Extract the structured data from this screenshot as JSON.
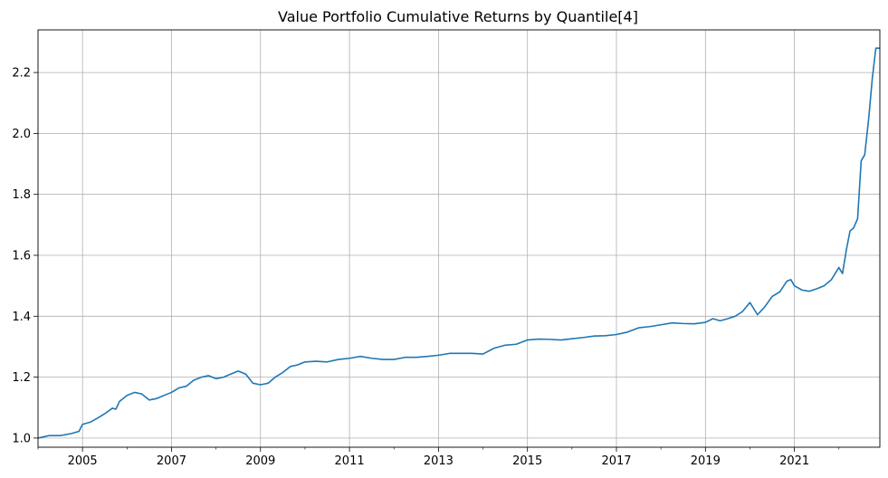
{
  "chart_data": {
    "type": "line",
    "title": "Value Portfolio Cumulative Returns by Quantile[4]",
    "xlabel": "",
    "ylabel": "",
    "grid": true,
    "xlim": [
      2004.0,
      2022.92
    ],
    "ylim": [
      0.97,
      2.34
    ],
    "x_ticks": [
      2005,
      2007,
      2009,
      2011,
      2013,
      2015,
      2017,
      2019,
      2021
    ],
    "x_tick_labels": [
      "2005",
      "2007",
      "2009",
      "2011",
      "2013",
      "2015",
      "2017",
      "2019",
      "2021"
    ],
    "y_ticks": [
      1.0,
      1.2,
      1.4,
      1.6,
      1.8,
      2.0,
      2.2
    ],
    "y_tick_labels": [
      "1.0",
      "1.2",
      "1.4",
      "1.6",
      "1.8",
      "2.0",
      "2.2"
    ],
    "series": [
      {
        "name": "Quantile 4",
        "color": "#1f77b4",
        "x": [
          2004.0,
          2004.25,
          2004.5,
          2004.75,
          2004.92,
          2005.0,
          2005.17,
          2005.33,
          2005.5,
          2005.67,
          2005.75,
          2005.83,
          2006.0,
          2006.17,
          2006.33,
          2006.5,
          2006.67,
          2006.83,
          2007.0,
          2007.17,
          2007.33,
          2007.5,
          2007.67,
          2007.83,
          2008.0,
          2008.17,
          2008.33,
          2008.5,
          2008.67,
          2008.83,
          2009.0,
          2009.17,
          2009.33,
          2009.5,
          2009.67,
          2009.83,
          2010.0,
          2010.25,
          2010.5,
          2010.75,
          2011.0,
          2011.25,
          2011.5,
          2011.75,
          2012.0,
          2012.25,
          2012.5,
          2012.75,
          2013.0,
          2013.25,
          2013.5,
          2013.75,
          2014.0,
          2014.25,
          2014.5,
          2014.75,
          2015.0,
          2015.25,
          2015.5,
          2015.75,
          2016.0,
          2016.25,
          2016.5,
          2016.75,
          2017.0,
          2017.25,
          2017.5,
          2017.75,
          2018.0,
          2018.25,
          2018.5,
          2018.75,
          2019.0,
          2019.17,
          2019.33,
          2019.5,
          2019.67,
          2019.83,
          2020.0,
          2020.17,
          2020.33,
          2020.5,
          2020.67,
          2020.83,
          2020.92,
          2021.0,
          2021.17,
          2021.33,
          2021.5,
          2021.67,
          2021.83,
          2022.0,
          2022.08,
          2022.17,
          2022.25,
          2022.33,
          2022.42,
          2022.5,
          2022.58,
          2022.67,
          2022.75,
          2022.83,
          2022.92
        ],
        "values": [
          1.0,
          1.008,
          1.008,
          1.015,
          1.022,
          1.045,
          1.052,
          1.065,
          1.08,
          1.098,
          1.095,
          1.12,
          1.14,
          1.15,
          1.145,
          1.125,
          1.13,
          1.14,
          1.15,
          1.165,
          1.17,
          1.19,
          1.2,
          1.205,
          1.195,
          1.2,
          1.21,
          1.22,
          1.21,
          1.18,
          1.175,
          1.18,
          1.2,
          1.215,
          1.235,
          1.24,
          1.25,
          1.252,
          1.25,
          1.258,
          1.262,
          1.268,
          1.262,
          1.258,
          1.258,
          1.265,
          1.265,
          1.268,
          1.272,
          1.278,
          1.278,
          1.278,
          1.276,
          1.295,
          1.305,
          1.308,
          1.322,
          1.325,
          1.324,
          1.322,
          1.326,
          1.33,
          1.335,
          1.336,
          1.34,
          1.348,
          1.362,
          1.366,
          1.372,
          1.378,
          1.376,
          1.375,
          1.38,
          1.392,
          1.385,
          1.392,
          1.4,
          1.415,
          1.445,
          1.405,
          1.43,
          1.465,
          1.48,
          1.515,
          1.52,
          1.5,
          1.486,
          1.482,
          1.49,
          1.5,
          1.52,
          1.56,
          1.54,
          1.62,
          1.68,
          1.69,
          1.72,
          1.91,
          1.93,
          2.05,
          2.18,
          2.28,
          2.28
        ]
      }
    ]
  }
}
